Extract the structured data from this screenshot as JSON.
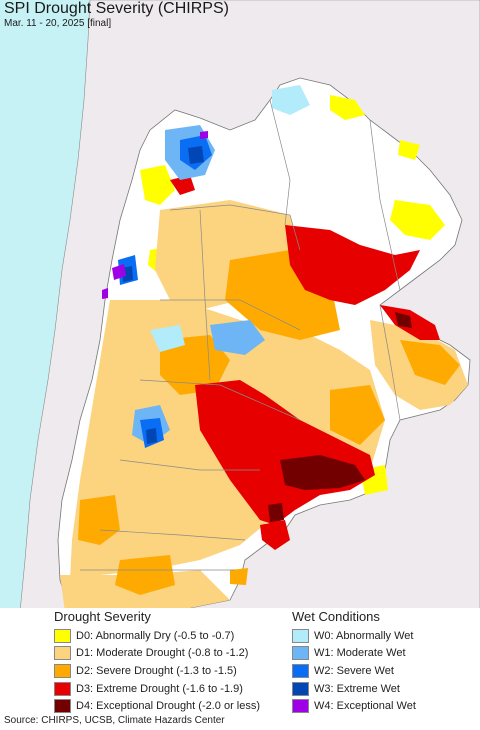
{
  "title": "SPI Drought Severity (CHIRPS)",
  "subtitle": "Mar. 11 - 20, 2025 [final]",
  "colors": {
    "ocean": "#c6f2f6",
    "land_outside": "#eeeaee",
    "border": "#8a8a8a"
  },
  "legend": {
    "drought": {
      "heading": "Drought Severity",
      "items": [
        {
          "code": "D0",
          "label": "D0: Abnormally Dry (-0.5 to -0.7)",
          "color": "#ffff00"
        },
        {
          "code": "D1",
          "label": "D1: Moderate Drought (-0.8 to -1.2)",
          "color": "#fcd37f"
        },
        {
          "code": "D2",
          "label": "D2: Severe Drought (-1.3 to -1.5)",
          "color": "#ffaa00"
        },
        {
          "code": "D3",
          "label": "D3: Extreme Drought (-1.6 to -1.9)",
          "color": "#e60000"
        },
        {
          "code": "D4",
          "label": "D4: Exceptional Drought (-2.0 or less)",
          "color": "#730000"
        }
      ]
    },
    "wet": {
      "heading": "Wet Conditions",
      "items": [
        {
          "code": "W0",
          "label": "W0: Abnormally Wet",
          "color": "#b2ebfa"
        },
        {
          "code": "W1",
          "label": "W1: Moderate Wet",
          "color": "#6eb5f5"
        },
        {
          "code": "W2",
          "label": "W2: Severe Wet",
          "color": "#0a6ef5"
        },
        {
          "code": "W3",
          "label": "W3: Extreme Wet",
          "color": "#0046b4"
        },
        {
          "code": "W4",
          "label": "W4: Exceptional Wet",
          "color": "#a000e6"
        }
      ]
    }
  },
  "footer": "Source: CHIRPS, UCSB, Climate Hazards Center"
}
